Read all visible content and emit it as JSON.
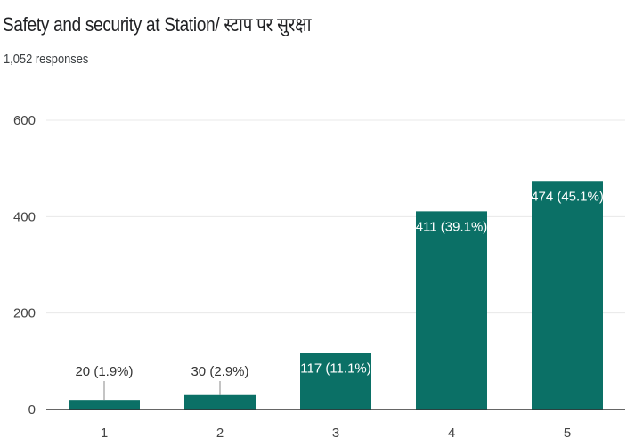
{
  "header": {
    "title": "Safety and security at Station/ स्टाप पर सुरक्षा",
    "responses": "1,052 responses"
  },
  "colors": {
    "bar": "#0b7066",
    "grid": "#e8e8e8",
    "axis": "#333333",
    "label_inside": "#ffffff",
    "label_outside": "#333333"
  },
  "chart_data": {
    "type": "bar",
    "title": "Safety and security at Station/ स्टाप पर सुरक्षा",
    "categories": [
      "1",
      "2",
      "3",
      "4",
      "5"
    ],
    "values": [
      20,
      30,
      117,
      411,
      474
    ],
    "data_labels": [
      "20 (1.9%)",
      "30 (2.9%)",
      "117 (11.1%)",
      "411 (39.1%)",
      "474 (45.1%)"
    ],
    "ylim": [
      0,
      600
    ],
    "yticks": [
      0,
      200,
      400,
      600
    ],
    "ytick_labels": [
      "0",
      "200",
      "400",
      "600"
    ],
    "xlabel": "",
    "ylabel": "",
    "grid": true,
    "legend": "none"
  }
}
